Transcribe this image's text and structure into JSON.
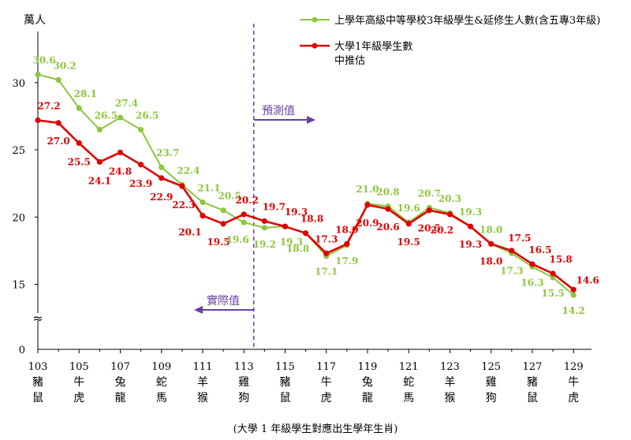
{
  "chart_data": {
    "type": "line",
    "ylabel": "萬人",
    "xlabel": "(大學 1 年級學生對應出生學年生肖)",
    "ylim": [
      0,
      33
    ],
    "yticks": [
      0,
      15,
      20,
      25,
      30
    ],
    "axis_break_symbol": "≈",
    "x": [
      103,
      104,
      105,
      106,
      107,
      108,
      109,
      110,
      111,
      112,
      113,
      114,
      115,
      116,
      117,
      118,
      119,
      120,
      121,
      122,
      123,
      124,
      125,
      126,
      127,
      128,
      129
    ],
    "x_tick_labels": [
      "103",
      "105",
      "107",
      "109",
      "111",
      "113",
      "115",
      "117",
      "119",
      "121",
      "123",
      "125",
      "127",
      "129"
    ],
    "x_tick_values": [
      103,
      105,
      107,
      109,
      111,
      113,
      115,
      117,
      119,
      121,
      123,
      125,
      127,
      129
    ],
    "zodiac_labels": [
      [
        "豬",
        "鼠"
      ],
      [
        "牛",
        "虎"
      ],
      [
        "兔",
        "龍"
      ],
      [
        "蛇",
        "馬"
      ],
      [
        "羊",
        "猴"
      ],
      [
        "雞",
        "狗"
      ],
      [
        "豬",
        "鼠"
      ],
      [
        "牛",
        "虎"
      ],
      [
        "兔",
        "龍"
      ],
      [
        "蛇",
        "馬"
      ],
      [
        "羊",
        "猴"
      ],
      [
        "雞",
        "狗"
      ],
      [
        "豬",
        "鼠"
      ],
      [
        "牛",
        "虎"
      ]
    ],
    "series": [
      {
        "name": "上學年高級中等學校3年級學生&延修生人數(含五專3年級)",
        "color": "#8DC63F",
        "values": [
          30.6,
          30.2,
          28.1,
          26.5,
          27.4,
          26.5,
          23.7,
          22.4,
          21.1,
          20.5,
          19.6,
          19.2,
          19.3,
          18.8,
          17.1,
          17.9,
          21.0,
          20.8,
          19.6,
          20.7,
          20.3,
          19.3,
          18.0,
          17.3,
          16.3,
          15.5,
          14.2
        ],
        "label_texts": [
          "30.6",
          "30.2",
          "28.1",
          "26.5",
          "27.4",
          "26.5",
          "23.7",
          "22.4",
          "21.1",
          "20.5",
          "19.6",
          "19.2",
          "19.3",
          "18.8",
          "17.1",
          "17.9",
          "21.0",
          "20.8",
          "19.6",
          "20.7",
          "20.3",
          "19.3",
          "18.0",
          "17.3",
          "16.3",
          "15.5",
          "14.2"
        ]
      },
      {
        "name": "大學1年級學生數中推估",
        "color": "#E00000",
        "values": [
          27.2,
          27.0,
          25.5,
          24.1,
          24.8,
          23.9,
          22.9,
          22.3,
          20.1,
          19.5,
          20.2,
          19.7,
          19.3,
          18.8,
          17.3,
          18.0,
          20.9,
          20.6,
          19.5,
          20.5,
          20.2,
          19.3,
          18.0,
          17.5,
          16.5,
          15.8,
          14.6
        ],
        "label_texts": [
          "27.2",
          "27.0",
          "25.5",
          "24.1",
          "24.8",
          "23.9",
          "22.9",
          "22.3",
          "20.1",
          "19.5",
          "20.2",
          "19.7",
          "19.3",
          "18.8",
          "17.3",
          "18.0",
          "20.9",
          "20.6",
          "19.5",
          "20.5",
          "20.2",
          "19.3",
          "18.0",
          "17.5",
          "16.5",
          "15.8",
          "14.6"
        ]
      }
    ],
    "legend": {
      "green": "上學年高級中等學校3年級學生&延修生人數(含五專3年級)",
      "red_line1": "大學1年級學生數",
      "red_line2": "中推估"
    },
    "annotations": {
      "forecast": "預測值",
      "actual": "實際值"
    }
  }
}
